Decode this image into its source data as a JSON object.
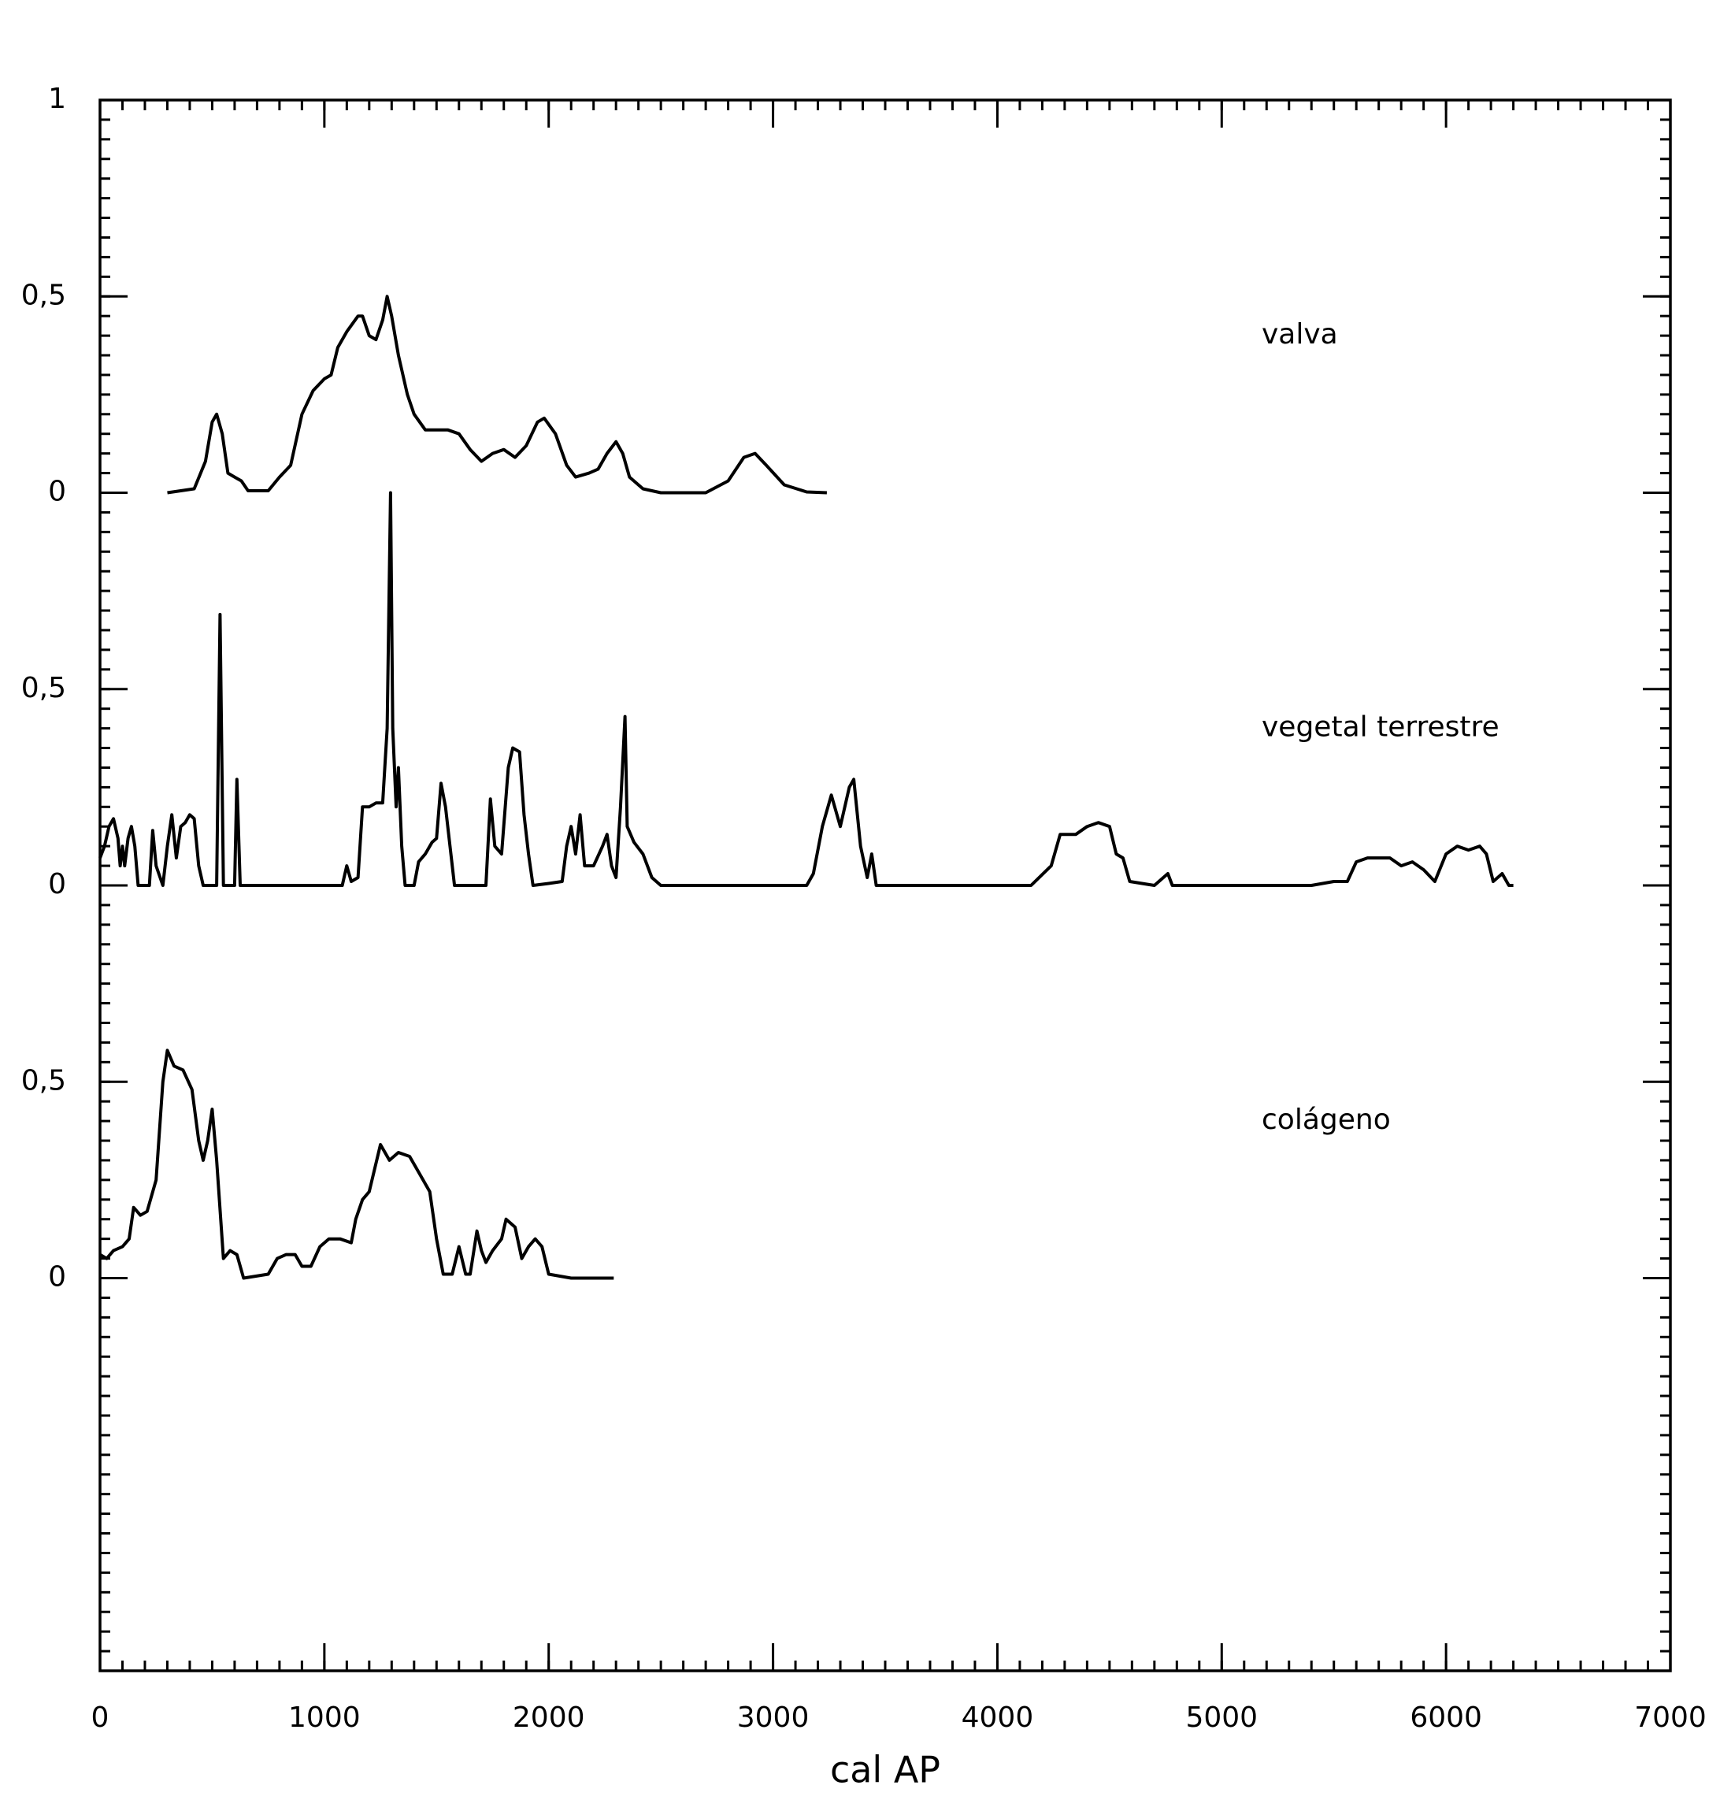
{
  "chart_data": [
    {
      "type": "line",
      "annotation": "valva",
      "color": "#000000",
      "xlim": [
        0,
        7000
      ],
      "ylim": [
        0,
        1
      ],
      "yticks": [
        0,
        {
          "value": 0.5,
          "label": "0,5"
        },
        1
      ],
      "x": [
        300,
        420,
        470,
        500,
        520,
        545,
        570,
        600,
        630,
        660,
        750,
        800,
        850,
        900,
        950,
        1000,
        1030,
        1060,
        1100,
        1150,
        1170,
        1200,
        1230,
        1260,
        1280,
        1300,
        1330,
        1370,
        1400,
        1450,
        1550,
        1600,
        1650,
        1700,
        1750,
        1800,
        1850,
        1900,
        1950,
        1980,
        2030,
        2080,
        2120,
        2180,
        2220,
        2260,
        2300,
        2330,
        2360,
        2420,
        2500,
        2700,
        2800,
        2870,
        2920,
        2970,
        3050,
        3150,
        3240
      ],
      "values": [
        0,
        0.01,
        0.08,
        0.18,
        0.2,
        0.15,
        0.05,
        0.04,
        0.03,
        0.005,
        0.005,
        0.04,
        0.07,
        0.2,
        0.26,
        0.29,
        0.3,
        0.37,
        0.41,
        0.45,
        0.45,
        0.4,
        0.39,
        0.44,
        0.5,
        0.45,
        0.35,
        0.25,
        0.2,
        0.16,
        0.16,
        0.15,
        0.11,
        0.08,
        0.1,
        0.11,
        0.09,
        0.12,
        0.18,
        0.19,
        0.15,
        0.07,
        0.04,
        0.05,
        0.06,
        0.1,
        0.13,
        0.1,
        0.04,
        0.01,
        0,
        0,
        0.03,
        0.09,
        0.1,
        0.07,
        0.02,
        0.002,
        0
      ]
    },
    {
      "type": "line",
      "annotation": "vegetal terrestre",
      "color": "#000000",
      "xlim": [
        0,
        7000
      ],
      "ylim": [
        0,
        1
      ],
      "yticks": [
        0,
        {
          "value": 0.5,
          "label": "0,5"
        }
      ],
      "x": [
        0,
        20,
        40,
        60,
        80,
        90,
        100,
        110,
        125,
        140,
        155,
        170,
        220,
        235,
        250,
        280,
        300,
        320,
        340,
        360,
        380,
        400,
        420,
        440,
        460,
        520,
        535,
        550,
        600,
        610,
        625,
        1080,
        1100,
        1120,
        1150,
        1170,
        1200,
        1230,
        1260,
        1280,
        1295,
        1305,
        1320,
        1330,
        1345,
        1360,
        1400,
        1420,
        1450,
        1480,
        1500,
        1520,
        1540,
        1560,
        1580,
        1720,
        1740,
        1760,
        1790,
        1820,
        1840,
        1870,
        1890,
        1910,
        1930,
        2000,
        2060,
        2080,
        2100,
        2120,
        2140,
        2160,
        2200,
        2240,
        2260,
        2280,
        2300,
        2320,
        2340,
        2350,
        2380,
        2420,
        2460,
        2500,
        3150,
        3180,
        3220,
        3260,
        3300,
        3340,
        3360,
        3390,
        3420,
        3440,
        3460,
        4150,
        4240,
        4280,
        4350,
        4400,
        4450,
        4500,
        4530,
        4560,
        4590,
        4700,
        4760,
        4780,
        5400,
        5500,
        5560,
        5600,
        5650,
        5750,
        5800,
        5850,
        5900,
        5950,
        6000,
        6050,
        6100,
        6150,
        6180,
        6210,
        6250,
        6280,
        6300
      ],
      "values": [
        0.07,
        0.1,
        0.15,
        0.17,
        0.12,
        0.05,
        0.1,
        0.05,
        0.12,
        0.15,
        0.1,
        0,
        0,
        0.14,
        0.05,
        0,
        0.1,
        0.18,
        0.07,
        0.15,
        0.16,
        0.18,
        0.17,
        0.05,
        0,
        0,
        0.69,
        0,
        0,
        0.27,
        0,
        0,
        0.05,
        0.01,
        0.02,
        0.2,
        0.2,
        0.21,
        0.21,
        0.4,
        1,
        0.4,
        0.2,
        0.3,
        0.1,
        0,
        0,
        0.06,
        0.08,
        0.11,
        0.12,
        0.26,
        0.2,
        0.1,
        0,
        0,
        0.22,
        0.1,
        0.08,
        0.3,
        0.35,
        0.34,
        0.18,
        0.08,
        0,
        0.005,
        0.01,
        0.1,
        0.15,
        0.08,
        0.18,
        0.05,
        0.05,
        0.1,
        0.13,
        0.05,
        0.02,
        0.2,
        0.43,
        0.15,
        0.11,
        0.08,
        0.02,
        0,
        0,
        0.03,
        0.15,
        0.23,
        0.15,
        0.25,
        0.27,
        0.1,
        0.02,
        0.08,
        0,
        0,
        0.05,
        0.13,
        0.13,
        0.15,
        0.16,
        0.15,
        0.08,
        0.07,
        0.01,
        0,
        0.03,
        0,
        0,
        0.01,
        0.01,
        0.06,
        0.07,
        0.07,
        0.05,
        0.06,
        0.04,
        0.01,
        0.08,
        0.1,
        0.09,
        0.1,
        0.08,
        0.01,
        0.03,
        0,
        0
      ]
    },
    {
      "type": "line",
      "annotation": "colágeno",
      "color": "#000000",
      "xlim": [
        0,
        7000
      ],
      "ylim": [
        -1,
        1
      ],
      "yticks": [
        0,
        {
          "value": 0.5,
          "label": "0,5"
        }
      ],
      "xticks": [
        0,
        1000,
        2000,
        3000,
        4000,
        5000,
        6000,
        7000
      ],
      "xlabel": "cal AP",
      "minor_ticks": true,
      "x": [
        0,
        30,
        60,
        100,
        130,
        150,
        180,
        210,
        250,
        280,
        300,
        330,
        370,
        410,
        440,
        460,
        480,
        500,
        520,
        550,
        580,
        610,
        640,
        750,
        790,
        830,
        870,
        900,
        940,
        980,
        1020,
        1070,
        1120,
        1140,
        1170,
        1200,
        1250,
        1290,
        1330,
        1380,
        1420,
        1470,
        1500,
        1530,
        1570,
        1600,
        1630,
        1650,
        1680,
        1700,
        1720,
        1750,
        1790,
        1810,
        1850,
        1880,
        1910,
        1940,
        1970,
        2000,
        2100,
        2290
      ],
      "values": [
        0.06,
        0.05,
        0.07,
        0.08,
        0.1,
        0.18,
        0.16,
        0.17,
        0.25,
        0.5,
        0.58,
        0.54,
        0.53,
        0.48,
        0.35,
        0.3,
        0.35,
        0.43,
        0.3,
        0.05,
        0.07,
        0.06,
        0,
        0.01,
        0.05,
        0.06,
        0.06,
        0.03,
        0.03,
        0.08,
        0.1,
        0.1,
        0.09,
        0.15,
        0.2,
        0.22,
        0.34,
        0.3,
        0.32,
        0.31,
        0.27,
        0.22,
        0.1,
        0.01,
        0.01,
        0.08,
        0.01,
        0.01,
        0.12,
        0.07,
        0.04,
        0.07,
        0.1,
        0.15,
        0.13,
        0.05,
        0.08,
        0.1,
        0.08,
        0.01,
        0,
        0
      ]
    }
  ]
}
